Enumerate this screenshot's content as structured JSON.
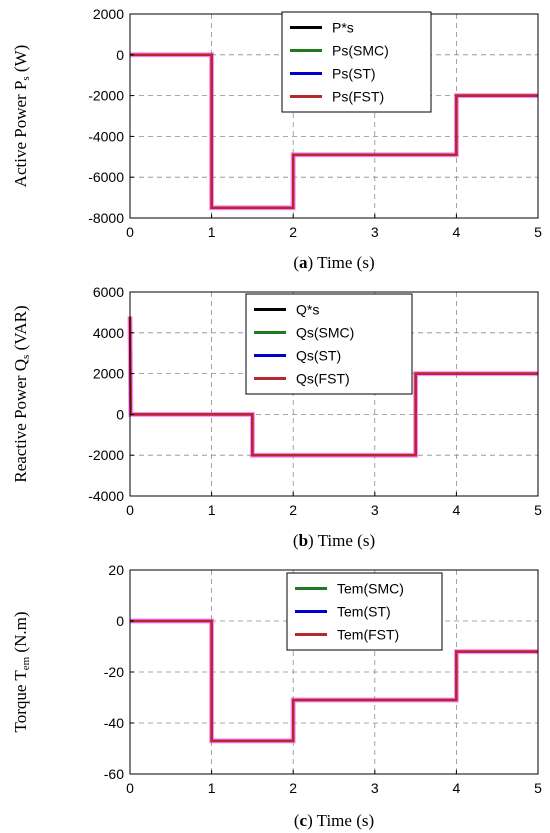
{
  "chart_data": [
    {
      "type": "line",
      "ylabel": "Active Power P",
      "ylabel_sub": "s",
      "ylabel_unit": " (W)",
      "caption_letter": "a",
      "caption_text": "Time (s)",
      "xlim": [
        0,
        5
      ],
      "ylim": [
        -8000,
        2000
      ],
      "xticks": [
        "0",
        "1",
        "2",
        "3",
        "4",
        "5"
      ],
      "yticks": [
        "2000",
        "0",
        "-2000",
        "-4000",
        "-6000",
        "-8000"
      ],
      "ytick_values": [
        2000,
        0,
        -2000,
        -4000,
        -6000,
        -8000
      ],
      "grid": true,
      "legend_position": "top-right",
      "series": [
        {
          "name": "P*s",
          "color": "#000000",
          "points": [
            [
              0,
              0
            ],
            [
              1,
              0
            ],
            [
              1,
              -7500
            ],
            [
              2,
              -7500
            ],
            [
              2,
              -4900
            ],
            [
              4,
              -4900
            ],
            [
              4,
              -2000
            ],
            [
              5,
              -2000
            ]
          ]
        },
        {
          "name": "Ps(SMC)",
          "color": "#1f7a1f",
          "points": [
            [
              0,
              0
            ],
            [
              1,
              0
            ],
            [
              1,
              -7500
            ],
            [
              2,
              -7500
            ],
            [
              2,
              -4900
            ],
            [
              4,
              -4900
            ],
            [
              4,
              -2000
            ],
            [
              5,
              -2000
            ]
          ]
        },
        {
          "name": "Ps(ST)",
          "color": "#0000cc",
          "points": [
            [
              0,
              0
            ],
            [
              1,
              0
            ],
            [
              1,
              -7500
            ],
            [
              2,
              -7500
            ],
            [
              2,
              -4900
            ],
            [
              4,
              -4900
            ],
            [
              4,
              -2000
            ],
            [
              5,
              -2000
            ]
          ]
        },
        {
          "name": "Ps(FST)",
          "color": "#b5282b",
          "points": [
            [
              0,
              0
            ],
            [
              1,
              0
            ],
            [
              1,
              -7500
            ],
            [
              2,
              -7500
            ],
            [
              2,
              -4900
            ],
            [
              4,
              -4900
            ],
            [
              4,
              -2000
            ],
            [
              5,
              -2000
            ]
          ]
        }
      ]
    },
    {
      "type": "line",
      "ylabel": "Reactive Power Q",
      "ylabel_sub": "s",
      "ylabel_unit": " (VAR)",
      "caption_letter": "b",
      "caption_text": "Time (s)",
      "xlim": [
        0,
        5
      ],
      "ylim": [
        -4000,
        6000
      ],
      "xticks": [
        "0",
        "1",
        "2",
        "3",
        "4",
        "5"
      ],
      "yticks": [
        "6000",
        "4000",
        "2000",
        "0",
        "-2000",
        "-4000"
      ],
      "ytick_values": [
        6000,
        4000,
        2000,
        0,
        -2000,
        -4000
      ],
      "grid": true,
      "legend_position": "top-right",
      "series": [
        {
          "name": "Q*s",
          "color": "#000000",
          "points": [
            [
              0,
              0
            ],
            [
              1.5,
              0
            ],
            [
              1.5,
              -2000
            ],
            [
              3.5,
              -2000
            ],
            [
              3.5,
              2000
            ],
            [
              5,
              2000
            ]
          ]
        },
        {
          "name": "Qs(SMC)",
          "color": "#1f7a1f",
          "points": [
            [
              0,
              0
            ],
            [
              1.5,
              0
            ],
            [
              1.5,
              -2000
            ],
            [
              3.5,
              -2000
            ],
            [
              3.5,
              2000
            ],
            [
              5,
              2000
            ]
          ]
        },
        {
          "name": "Qs(ST)",
          "color": "#0000cc",
          "points": [
            [
              0,
              0
            ],
            [
              1.5,
              0
            ],
            [
              1.5,
              -2000
            ],
            [
              3.5,
              -2000
            ],
            [
              3.5,
              2000
            ],
            [
              5,
              2000
            ]
          ]
        },
        {
          "name": "Qs(FST)",
          "color": "#b5282b",
          "points": [
            [
              0,
              4800
            ],
            [
              0.01,
              0
            ],
            [
              1.5,
              0
            ],
            [
              1.5,
              -2000
            ],
            [
              3.5,
              -2000
            ],
            [
              3.5,
              2000
            ],
            [
              5,
              2000
            ]
          ]
        }
      ]
    },
    {
      "type": "line",
      "ylabel": "Torque T",
      "ylabel_sub": "em",
      "ylabel_unit": " (N.m)",
      "caption_letter": "c",
      "caption_text": "Time (s)",
      "xlim": [
        0,
        5
      ],
      "ylim": [
        -60,
        20
      ],
      "xticks": [
        "0",
        "1",
        "2",
        "3",
        "4",
        "5"
      ],
      "yticks": [
        "20",
        "0",
        "-20",
        "-40",
        "-60"
      ],
      "ytick_values": [
        20,
        0,
        -20,
        -40,
        -60
      ],
      "grid": true,
      "legend_position": "top-right",
      "series": [
        {
          "name": "Tem(SMC)",
          "color": "#1f7a1f",
          "points": [
            [
              0,
              0
            ],
            [
              1,
              0
            ],
            [
              1,
              -47
            ],
            [
              2,
              -47
            ],
            [
              2,
              -31
            ],
            [
              4,
              -31
            ],
            [
              4,
              -12
            ],
            [
              5,
              -12
            ]
          ]
        },
        {
          "name": "Tem(ST)",
          "color": "#0000cc",
          "points": [
            [
              0,
              0
            ],
            [
              1,
              0
            ],
            [
              1,
              -47
            ],
            [
              2,
              -47
            ],
            [
              2,
              -31
            ],
            [
              4,
              -31
            ],
            [
              4,
              -12
            ],
            [
              5,
              -12
            ]
          ]
        },
        {
          "name": "Tem(FST)",
          "color": "#b5282b",
          "points": [
            [
              0,
              0
            ],
            [
              1,
              0
            ],
            [
              1,
              -47
            ],
            [
              2,
              -47
            ],
            [
              2,
              -31
            ],
            [
              4,
              -31
            ],
            [
              4,
              -12
            ],
            [
              5,
              -12
            ]
          ]
        }
      ]
    }
  ]
}
